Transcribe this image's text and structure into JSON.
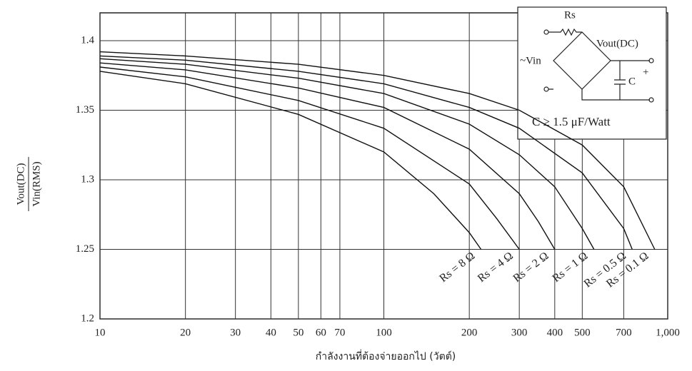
{
  "chart_data": {
    "type": "line",
    "log_x": true,
    "grid": true,
    "xlabel": "กำลังงานที่ต้องจ่ายออกไป (วัตต์)",
    "ylabel_numerator": "Vout(DC)",
    "ylabel_denominator": "Vin(RMS)",
    "xlim": [
      10,
      1000
    ],
    "ylim": [
      1.2,
      1.42
    ],
    "xticks": [
      10,
      20,
      30,
      40,
      50,
      60,
      70,
      100,
      200,
      300,
      400,
      500,
      700,
      {
        "value": 1000,
        "label": "1,000"
      }
    ],
    "yticks": [
      1.2,
      1.25,
      1.3,
      1.35,
      1.4
    ],
    "series": [
      {
        "name": "Rs = 0.1 Ω",
        "color": "#111111",
        "x": [
          10,
          20,
          50,
          100,
          200,
          300,
          500,
          700,
          900
        ],
        "values": [
          1.392,
          1.389,
          1.383,
          1.375,
          1.362,
          1.35,
          1.325,
          1.295,
          1.25
        ]
      },
      {
        "name": "Rs = 0.5 Ω",
        "color": "#111111",
        "x": [
          10,
          20,
          50,
          100,
          200,
          300,
          500,
          700,
          750
        ],
        "values": [
          1.389,
          1.386,
          1.378,
          1.369,
          1.352,
          1.337,
          1.305,
          1.265,
          1.25
        ]
      },
      {
        "name": "Rs = 1 Ω",
        "color": "#111111",
        "x": [
          10,
          20,
          50,
          100,
          200,
          300,
          400,
          500,
          550
        ],
        "values": [
          1.387,
          1.383,
          1.373,
          1.362,
          1.34,
          1.318,
          1.295,
          1.265,
          1.25
        ]
      },
      {
        "name": "Rs = 2 Ω",
        "color": "#111111",
        "x": [
          10,
          20,
          50,
          100,
          200,
          300,
          350,
          400
        ],
        "values": [
          1.384,
          1.379,
          1.366,
          1.352,
          1.322,
          1.29,
          1.27,
          1.25
        ]
      },
      {
        "name": "Rs = 4 Ω",
        "color": "#111111",
        "x": [
          10,
          20,
          50,
          100,
          200,
          250,
          300
        ],
        "values": [
          1.381,
          1.374,
          1.357,
          1.337,
          1.297,
          1.272,
          1.25
        ]
      },
      {
        "name": "Rs = 8 Ω",
        "color": "#111111",
        "x": [
          10,
          20,
          50,
          100,
          150,
          200,
          220
        ],
        "values": [
          1.378,
          1.369,
          1.347,
          1.32,
          1.29,
          1.262,
          1.25
        ]
      }
    ],
    "inset": {
      "resistor": "Rs",
      "input": "~Vin",
      "output": "Vout(DC)",
      "plus": "+",
      "capacitor": "C",
      "note": "C ≥ 1.5 μF/Watt"
    }
  }
}
